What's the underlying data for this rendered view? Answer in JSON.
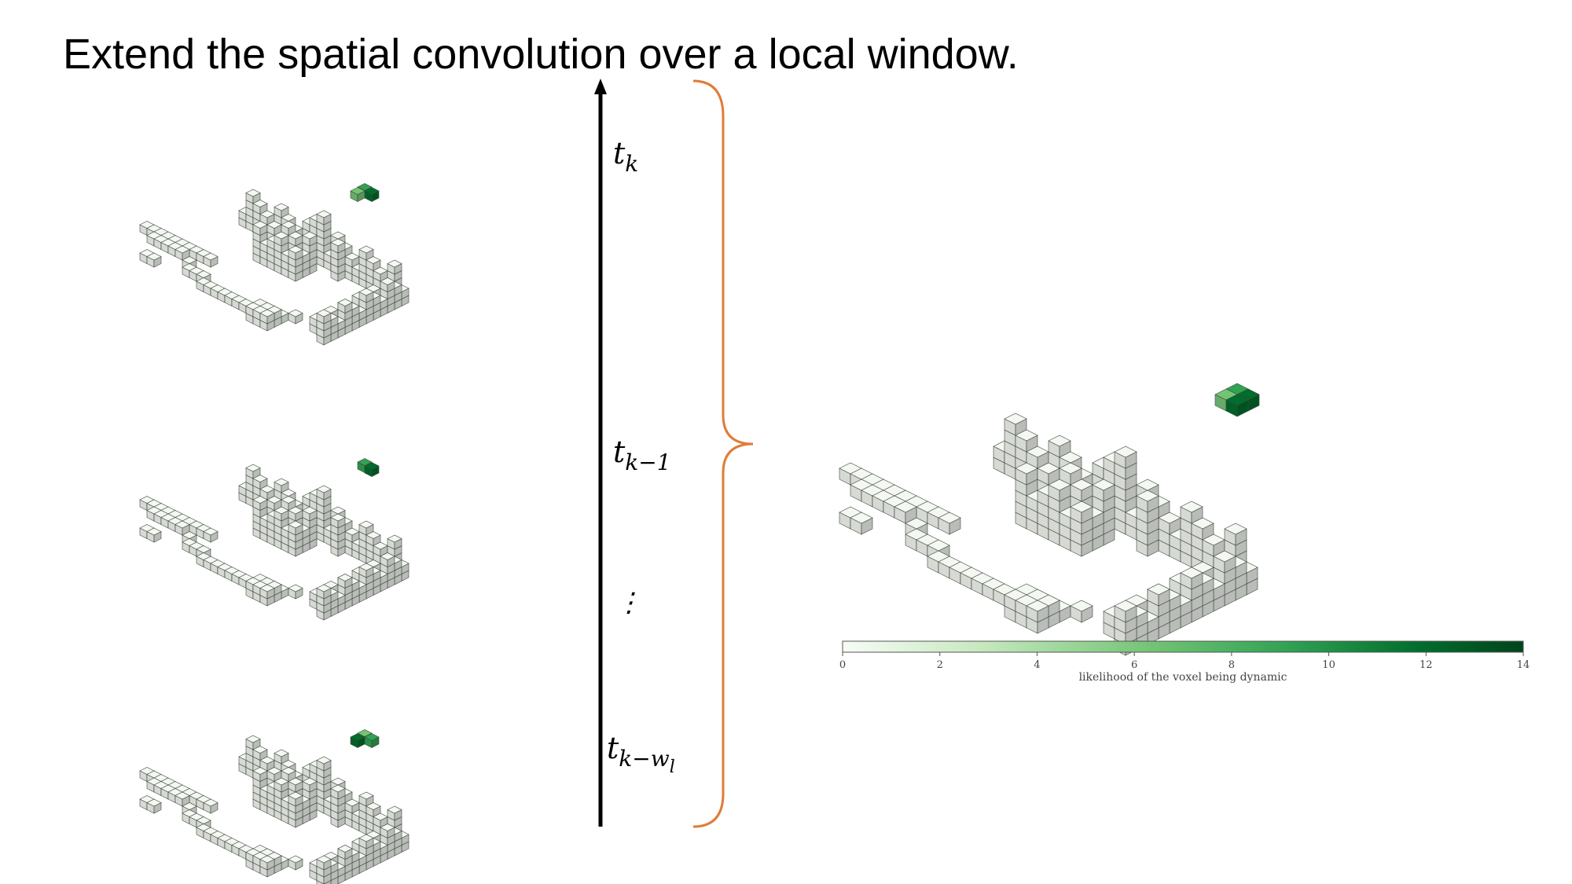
{
  "slide": {
    "title": "Extend the spatial convolution over a local window."
  },
  "time_axis": {
    "labels": [
      {
        "base": "t",
        "sub": "k"
      },
      {
        "base": "t",
        "sub": "k−1"
      },
      {
        "base": "t",
        "sub": "k−w",
        "subsub": "l"
      }
    ],
    "ellipsis": "⋮"
  },
  "colorbar": {
    "title": "likelihood of the voxel being dynamic",
    "ticks": [
      "0",
      "2",
      "4",
      "6",
      "8",
      "10",
      "12",
      "14"
    ],
    "colors": [
      "#f7fcf5",
      "#c7e9c0",
      "#74c476",
      "#31a354",
      "#006d2c",
      "#00441b"
    ]
  },
  "colors": {
    "voxel_fill": "#f4f7f2",
    "voxel_edge": "#3b4a3b",
    "axis": "#000000",
    "brace": "#e07b39",
    "highlight_light": "#74c476",
    "highlight_mid": "#31a354",
    "highlight_dark": "#006d2c"
  }
}
